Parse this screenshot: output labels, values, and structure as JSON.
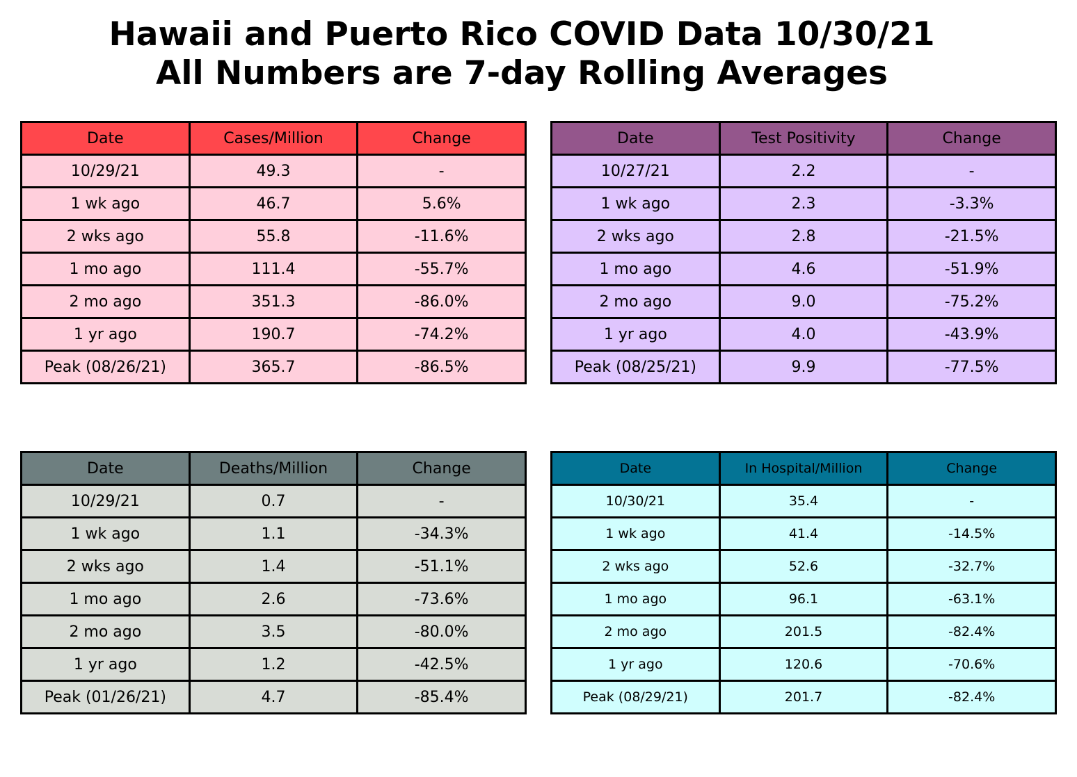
{
  "title_line1": "Hawaii and Puerto Rico COVID Data 10/30/21",
  "title_line2": "All Numbers are 7-day Rolling Averages",
  "chart_data": [
    {
      "type": "table",
      "id": "cases",
      "header_color": "#ff474c",
      "body_color": "#ffcfdc",
      "columns": [
        "Date",
        "Cases/Million",
        "Change"
      ],
      "rows": [
        [
          "10/29/21",
          "49.3",
          "-"
        ],
        [
          "1 wk ago",
          "46.7",
          "5.6%"
        ],
        [
          "2 wks ago",
          "55.8",
          "-11.6%"
        ],
        [
          "1 mo ago",
          "111.4",
          "-55.7%"
        ],
        [
          "2 mo ago",
          "351.3",
          "-86.0%"
        ],
        [
          "1 yr ago",
          "190.7",
          "-74.2%"
        ],
        [
          "Peak (08/26/21)",
          "365.7",
          "-86.5%"
        ]
      ]
    },
    {
      "type": "table",
      "id": "positivity",
      "header_color": "#94568c",
      "body_color": "#dfc5fe",
      "columns": [
        "Date",
        "Test Positivity",
        "Change"
      ],
      "rows": [
        [
          "10/27/21",
          "2.2",
          "-"
        ],
        [
          "1 wk ago",
          "2.3",
          "-3.3%"
        ],
        [
          "2 wks ago",
          "2.8",
          "-21.5%"
        ],
        [
          "1 mo ago",
          "4.6",
          "-51.9%"
        ],
        [
          "2 mo ago",
          "9.0",
          "-75.2%"
        ],
        [
          "1 yr ago",
          "4.0",
          "-43.9%"
        ],
        [
          "Peak (08/25/21)",
          "9.9",
          "-77.5%"
        ]
      ]
    },
    {
      "type": "table",
      "id": "deaths",
      "header_color": "#6e7f80",
      "body_color": "#d8dcd6",
      "columns": [
        "Date",
        "Deaths/Million",
        "Change"
      ],
      "rows": [
        [
          "10/29/21",
          "0.7",
          "-"
        ],
        [
          "1 wk ago",
          "1.1",
          "-34.3%"
        ],
        [
          "2 wks ago",
          "1.4",
          "-51.1%"
        ],
        [
          "1 mo ago",
          "2.6",
          "-73.6%"
        ],
        [
          "2 mo ago",
          "3.5",
          "-80.0%"
        ],
        [
          "1 yr ago",
          "1.2",
          "-42.5%"
        ],
        [
          "Peak (01/26/21)",
          "4.7",
          "-85.4%"
        ]
      ]
    },
    {
      "type": "table",
      "id": "hospital",
      "header_color": "#047495",
      "body_color": "#d0fefe",
      "columns": [
        "Date",
        "In Hospital/Million",
        "Change"
      ],
      "rows": [
        [
          "10/30/21",
          "35.4",
          "-"
        ],
        [
          "1 wk ago",
          "41.4",
          "-14.5%"
        ],
        [
          "2 wks ago",
          "52.6",
          "-32.7%"
        ],
        [
          "1 mo ago",
          "96.1",
          "-63.1%"
        ],
        [
          "2 mo ago",
          "201.5",
          "-82.4%"
        ],
        [
          "1 yr ago",
          "120.6",
          "-70.6%"
        ],
        [
          "Peak (08/29/21)",
          "201.7",
          "-82.4%"
        ]
      ]
    }
  ]
}
